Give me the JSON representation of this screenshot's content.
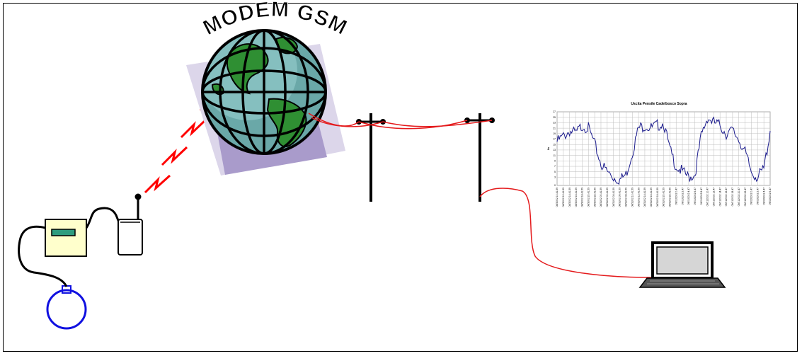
{
  "diagram": {
    "modem_label": "MODEM GSM",
    "colors": {
      "wire_red": "#e41a1c",
      "signal_red": "#ff0000",
      "sensor_blue": "#1010e0",
      "datalogger_fill": "#ffffcc",
      "display_green": "#2e9c7e",
      "globe_ocean": "#6aa8a8",
      "globe_land": "#2f8f33",
      "shadow_violet": "#bfb6dc",
      "chart_line": "#1a1a8c"
    },
    "components": [
      "pressure-sensor",
      "data-logger",
      "gsm-modem",
      "gsm-signal",
      "globe",
      "telephone-poles",
      "laptop",
      "chart"
    ]
  },
  "chart_data": {
    "type": "line",
    "title": "Uscita Pensile Cadelbosco Sopra",
    "xlabel": "",
    "ylabel": "l/s",
    "ylim": [
      0,
      27
    ],
    "yticks": [
      0,
      3,
      5,
      7,
      9,
      11,
      13,
      15,
      17,
      19,
      21,
      23,
      25,
      27
    ],
    "grid": true,
    "xtick_labels": [
      "08/30/02 10.41.59",
      "08/30/02 12.41.59",
      "08/30/02 14.41.59",
      "08/30/02 16.41.59",
      "08/30/02 18.41.59",
      "08/30/02 20.41.59",
      "08/30/02 22.41.59",
      "08/31/02 00.41.59",
      "08/31/02 02.41.59",
      "08/31/02 04.41.59",
      "08/31/02 06.41.59",
      "08/31/02 08.41.59",
      "08/31/02 10.41.59",
      "08/31/02 12.41.59",
      "08/31/02 14.41.59",
      "08/31/02 16.41.59",
      "08/31/02 18.41.59",
      "08/31/02 20.41.59",
      "08/31/02 22.41.59",
      "09/01/2002 0.47",
      "09/01/2002 2.47",
      "09/01/2002 4.47",
      "09/01/2002 6.47",
      "09/01/2002 8.47",
      "09/01/2002 10.47",
      "09/01/2002 12.47",
      "09/01/2002 14.47",
      "09/01/2002 16.47",
      "09/01/2002 18.47",
      "09/01/2002 20.47",
      "09/01/2002 22.47",
      "09/02/2002 0.47",
      "09/02/2002 2.47",
      "09/02/2002 4.47",
      "09/02/2002 6.47"
    ],
    "x": [
      0,
      1,
      2,
      3,
      4,
      5,
      6,
      7,
      8,
      9,
      10,
      11,
      12,
      13,
      14,
      15,
      16,
      17,
      18,
      19,
      20,
      21,
      22,
      23,
      24,
      25,
      26,
      27,
      28,
      29,
      30,
      31,
      32,
      33,
      34
    ],
    "values": [
      16,
      18,
      20,
      19,
      22,
      21,
      15,
      8,
      5,
      3,
      2,
      4,
      12,
      21,
      22,
      21,
      22,
      23,
      13,
      7,
      5,
      3,
      4,
      18,
      25,
      23,
      22,
      19,
      20,
      17,
      12,
      5,
      3,
      6,
      20
    ]
  }
}
